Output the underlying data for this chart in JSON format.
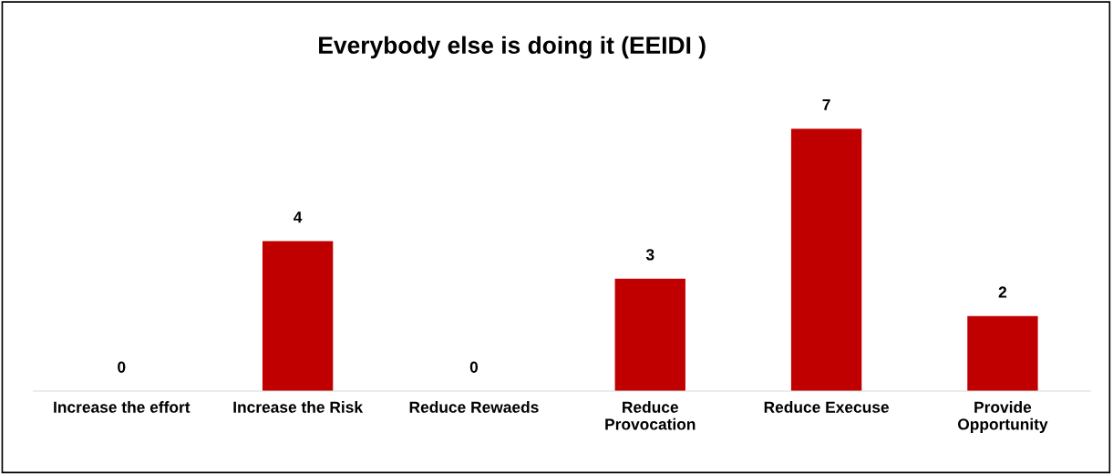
{
  "chart_data": {
    "type": "bar",
    "title": "Everybody else is doing it (EEIDI )",
    "categories": [
      "Increase the effort",
      "Increase the Risk",
      "Reduce Rewaeds",
      "Reduce\nProvocation",
      "Reduce Execuse",
      "Provide\nOpportunity"
    ],
    "values": [
      0,
      4,
      0,
      3,
      7,
      2
    ],
    "color": "#c00000",
    "data_labels": true,
    "grid": false,
    "legend": false
  }
}
